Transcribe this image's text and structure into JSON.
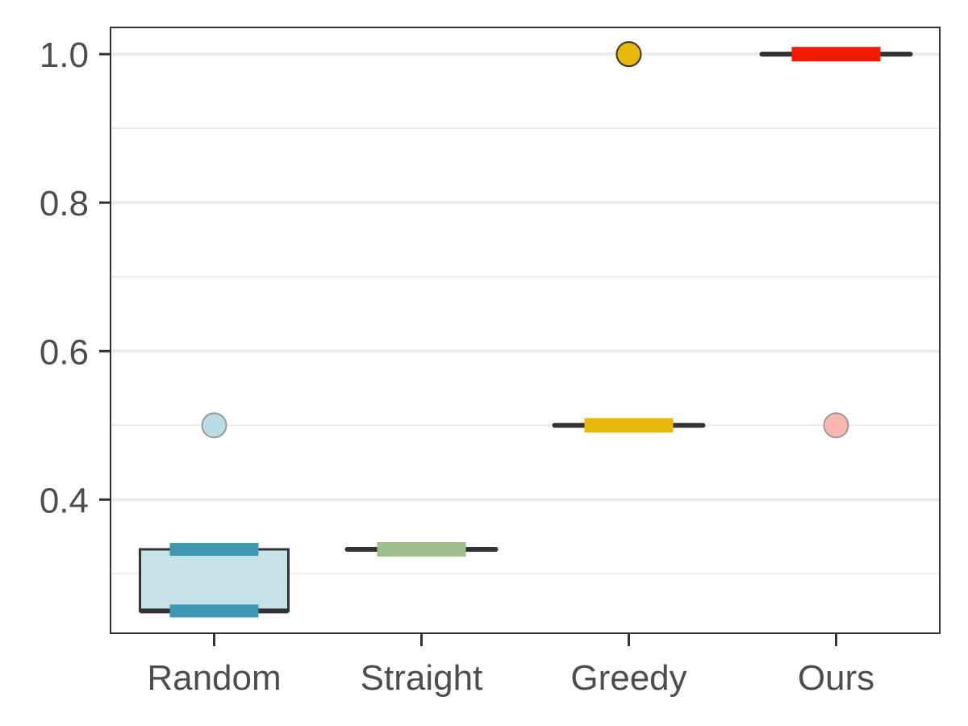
{
  "chart_data": {
    "type": "box",
    "title": "",
    "xlabel": "",
    "ylabel": "",
    "ylim": [
      0.22,
      1.036
    ],
    "grid": {
      "major": [
        0.4,
        0.6,
        0.8,
        1.0
      ],
      "minor": [
        0.3,
        0.5,
        0.7,
        0.9
      ],
      "vertical": false
    },
    "y_ticks": [
      {
        "value": 0.4,
        "label": "0.4"
      },
      {
        "value": 0.6,
        "label": "0.6"
      },
      {
        "value": 0.8,
        "label": "0.8"
      },
      {
        "value": 1.0,
        "label": "1.0"
      }
    ],
    "categories": [
      "Random",
      "Straight",
      "Greedy",
      "Ours"
    ],
    "boxes": [
      {
        "category": "Random",
        "q1": 0.25,
        "median": 0.25,
        "q3": 0.333,
        "whisker_low": 0.25,
        "whisker_high": 0.333,
        "outliers": [
          0.5
        ],
        "fill": "#c5e2e8",
        "accent": "#3d98b4",
        "outlier_fill": "#b9d9e2"
      },
      {
        "category": "Straight",
        "q1": 0.333,
        "median": 0.333,
        "q3": 0.333,
        "whisker_low": 0.333,
        "whisker_high": 0.333,
        "outliers": [],
        "fill": "#c5e2e8",
        "accent": "#9dbf8f",
        "outlier_fill": "#9dbf8f"
      },
      {
        "category": "Greedy",
        "q1": 0.5,
        "median": 0.5,
        "q3": 0.5,
        "whisker_low": 0.5,
        "whisker_high": 0.5,
        "outliers": [
          1.0
        ],
        "fill": "#e5b80b",
        "accent": "#e5b80b",
        "outlier_fill": "#e5b80b"
      },
      {
        "category": "Ours",
        "q1": 1.0,
        "median": 1.0,
        "q3": 1.0,
        "whisker_low": 1.0,
        "whisker_high": 1.0,
        "outliers": [
          0.5
        ],
        "fill": "#f8b3ab",
        "accent": "#f21a00",
        "outlier_fill": "#f8b3ab"
      }
    ],
    "colors": {
      "axis": "#333333",
      "grid": "#ebebeb",
      "box_line": "#333333"
    }
  }
}
